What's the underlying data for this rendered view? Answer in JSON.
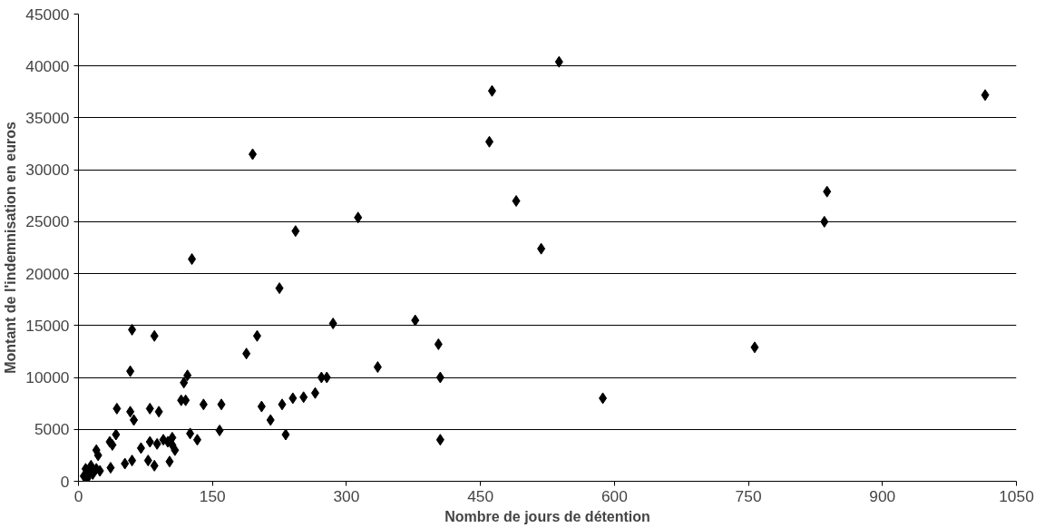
{
  "chart_data": {
    "type": "scatter",
    "xlabel": "Nombre de jours de détention",
    "ylabel": "Montant de l'indemnisation en euros",
    "x": [
      6,
      8,
      10,
      12,
      14,
      16,
      20,
      22,
      24,
      20,
      35,
      38,
      42,
      43,
      36,
      52,
      58,
      60,
      58,
      62,
      60,
      70,
      78,
      80,
      80,
      85,
      85,
      88,
      90,
      95,
      100,
      102,
      105,
      105,
      108,
      115,
      118,
      120,
      122,
      125,
      127,
      133,
      140,
      158,
      160,
      188,
      195,
      200,
      205,
      215,
      225,
      228,
      232,
      240,
      243,
      252,
      265,
      272,
      278,
      285,
      313,
      335,
      377,
      403,
      405,
      405,
      460,
      463,
      490,
      518,
      538,
      587,
      757,
      835,
      838,
      1015
    ],
    "values": [
      500,
      1200,
      300,
      800,
      1500,
      700,
      3000,
      2500,
      1000,
      1200,
      3800,
      3500,
      4500,
      7000,
      1300,
      1700,
      10600,
      14600,
      6700,
      5900,
      2000,
      3200,
      2000,
      7000,
      3800,
      1500,
      14000,
      3600,
      6700,
      4000,
      3800,
      1900,
      3500,
      4200,
      3000,
      7800,
      9500,
      7800,
      10200,
      4600,
      21400,
      4000,
      7400,
      4900,
      7400,
      12300,
      31500,
      14000,
      7200,
      5900,
      18600,
      7400,
      4500,
      8000,
      24100,
      8100,
      8500,
      10000,
      10000,
      15200,
      25400,
      11000,
      15500,
      13200,
      10000,
      4000,
      32700,
      37600,
      27000,
      22400,
      40400,
      8000,
      12900,
      25000,
      27900,
      37200
    ],
    "color": "#000000",
    "marker": "diamond",
    "grid": "y",
    "xlim": [
      0,
      1050
    ],
    "xticks": [
      0,
      150,
      300,
      450,
      600,
      750,
      900,
      1050
    ],
    "ylim": [
      0,
      45000
    ],
    "yticks": [
      0,
      5000,
      10000,
      15000,
      20000,
      25000,
      30000,
      35000,
      40000,
      45000
    ]
  }
}
